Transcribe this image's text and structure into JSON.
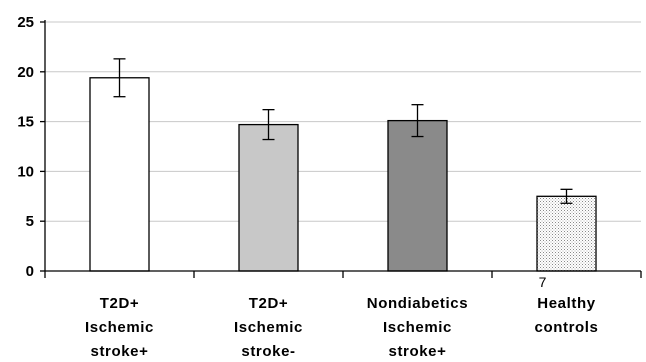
{
  "chart_data": {
    "type": "bar",
    "title": "",
    "xlabel": "",
    "ylabel": "",
    "ylim": [
      0,
      25
    ],
    "yticks": [
      0,
      5,
      10,
      15,
      20,
      25
    ],
    "grid": true,
    "categories": [
      [
        "T2D+",
        "Ischemic",
        "stroke+"
      ],
      [
        "T2D+",
        "Ischemic",
        "stroke-"
      ],
      [
        "Nondiabetics",
        "Ischemic",
        "stroke+"
      ],
      [
        "Healthy",
        "controls"
      ]
    ],
    "values": [
      19.4,
      14.7,
      15.1,
      7.5
    ],
    "errors": [
      1.9,
      1.5,
      1.6,
      0.7
    ],
    "colors": [
      "#ffffff",
      "#c8c8c8",
      "#8a8a8a",
      "#dcdcdc"
    ],
    "patterns": [
      "solid",
      "solid",
      "solid",
      "dotted"
    ],
    "annotations": [
      {
        "text": "7",
        "category_index": 3
      }
    ]
  }
}
